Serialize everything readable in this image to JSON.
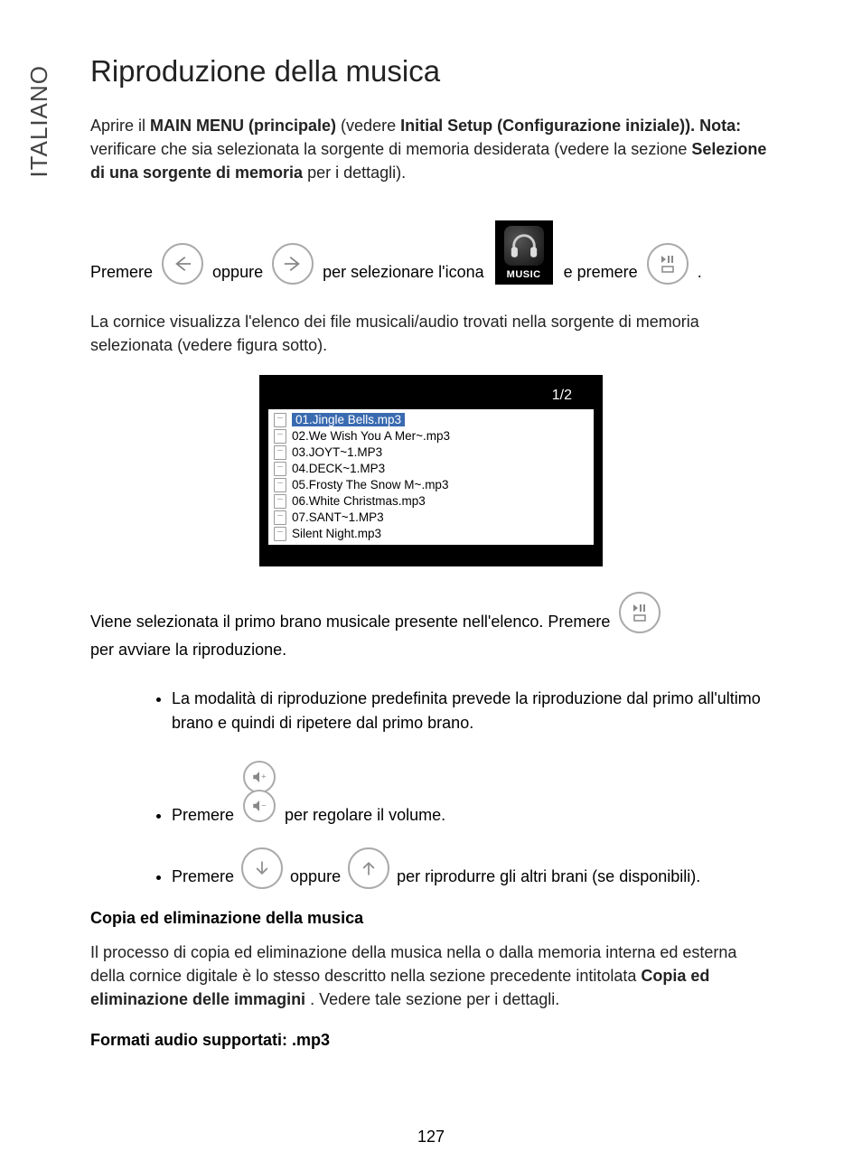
{
  "tab": "ITALIANO",
  "title": "Riproduzione della musica",
  "intro": {
    "t1": "Aprire il ",
    "b1": "MAIN MENU (principale)",
    "t2": " (vedere ",
    "b2": "Initial Setup (Configurazione iniziale)). Nota:",
    "t3": " verificare che sia selezionata la sorgente di memoria desiderata (vedere la sezione ",
    "b3": "Selezione di una sorgente di memoria",
    "t4": " per i dettagli)."
  },
  "row1": {
    "w1": "Premere",
    "w2": "oppure",
    "w3": "per selezionare l'icona",
    "music_label": "MUSIC",
    "w4": "e premere",
    "w5": "."
  },
  "para2": "La cornice visualizza l'elenco dei file musicali/audio trovati nella sorgente di memoria selezionata (vedere figura sotto).",
  "screenshot": {
    "counter": "1/2",
    "files": [
      {
        "name": "01.Jingle Bells.mp3",
        "selected": true
      },
      {
        "name": "02.We Wish You A Mer~.mp3",
        "selected": false
      },
      {
        "name": "03.JOYT~1.MP3",
        "selected": false
      },
      {
        "name": "04.DECK~1.MP3",
        "selected": false
      },
      {
        "name": "05.Frosty The Snow M~.mp3",
        "selected": false
      },
      {
        "name": "06.White Christmas.mp3",
        "selected": false
      },
      {
        "name": "07.SANT~1.MP3",
        "selected": false
      },
      {
        "name": "Silent Night.mp3",
        "selected": false
      }
    ]
  },
  "row2": {
    "w1": "Viene selezionata il primo brano musicale presente nell'elenco. Premere",
    "w2": "per avviare la riproduzione."
  },
  "bullets": {
    "b1": "La modalità di riproduzione predefinita prevede la riproduzione dal primo all'ultimo brano e quindi di ripetere dal primo brano.",
    "b2_a": "Premere",
    "b2_b": "per regolare il volume.",
    "b3_a": "Premere",
    "b3_b": "oppure",
    "b3_c": "per riprodurre gli altri brani (se disponibili)."
  },
  "sub1": "Copia ed eliminazione della musica",
  "para3": {
    "t1": "Il processo di copia ed eliminazione della musica nella o dalla memoria interna ed esterna della cornice digitale è lo stesso descritto nella sezione precedente intitolata ",
    "b1": "Copia ed eliminazione delle immagini",
    "t2": ". Vedere tale sezione per i dettagli."
  },
  "sub2": "Formati audio supportati: .mp3",
  "page_number": "127",
  "colors": {
    "circle_border": "#aaaaaa",
    "circle_stroke": "#888888",
    "selection_bg": "#3a6ab0"
  }
}
